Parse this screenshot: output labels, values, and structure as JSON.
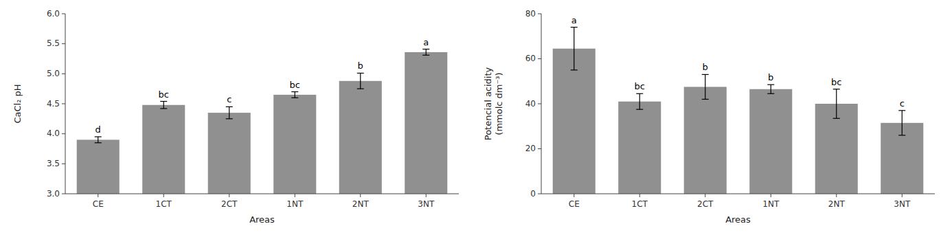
{
  "chart_data": [
    {
      "type": "bar",
      "categories": [
        "CE",
        "1CT",
        "2CT",
        "1NT",
        "2NT",
        "3NT"
      ],
      "values": [
        3.9,
        4.48,
        4.35,
        4.65,
        4.88,
        5.36
      ],
      "errors": [
        0.05,
        0.06,
        0.1,
        0.05,
        0.13,
        0.05
      ],
      "annotations": [
        "d",
        "bc",
        "c",
        "bc",
        "b",
        "a"
      ],
      "y_label": "CaCl₂ pH",
      "x_label": "Areas",
      "color": "#909090",
      "ylim": [
        3.0,
        6.0
      ],
      "yticks": [
        {
          "value": 3.0,
          "label": "3.0"
        },
        3.5,
        {
          "value": 4.0,
          "label": "4.0"
        },
        4.5,
        {
          "value": 5.0,
          "label": "5.0"
        },
        5.5,
        {
          "value": 6.0,
          "label": "6.0"
        }
      ],
      "grid": false
    },
    {
      "type": "bar",
      "categories": [
        "CE",
        "1CT",
        "2CT",
        "1NT",
        "2NT",
        "3NT"
      ],
      "values": [
        64.5,
        41.0,
        47.5,
        46.5,
        40.0,
        31.5
      ],
      "errors": [
        9.5,
        3.5,
        5.5,
        2.0,
        6.5,
        5.5
      ],
      "annotations": [
        "a",
        "bc",
        "b",
        "b",
        "bc",
        "c"
      ],
      "y_label": "Potencial acidity\n(mmolc dm⁻³)",
      "x_label": "Areas",
      "color": "#909090",
      "ylim": [
        0,
        80
      ],
      "yticks": [
        0,
        20,
        40,
        60,
        80
      ],
      "grid": false
    }
  ]
}
